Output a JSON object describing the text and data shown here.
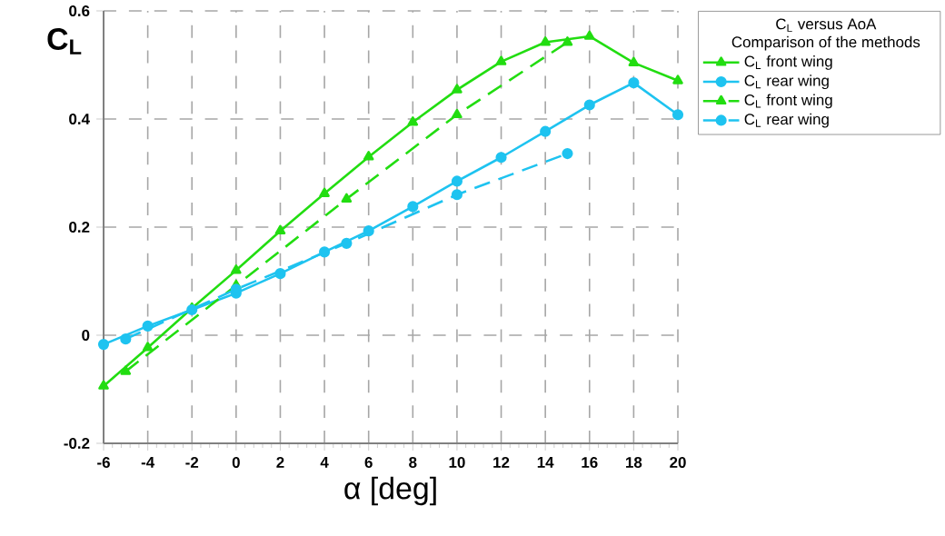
{
  "chart_data": {
    "type": "line",
    "xlabel": "α [deg]",
    "ylabel": "C$_{L}$",
    "legend_title": "C$_{L}$ versus AoA Comparison of the methods",
    "xlim": [
      -6,
      20
    ],
    "ylim": [
      -0.2,
      0.6
    ],
    "xticks": [
      -6,
      -4,
      -2,
      0,
      2,
      4,
      6,
      8,
      10,
      12,
      14,
      16,
      18,
      20
    ],
    "yticks": [
      -0.2,
      0,
      0.2,
      0.4,
      0.6
    ],
    "grid": true,
    "legend": "top right",
    "series": [
      {
        "name": "C$_{L}$ front wing",
        "color": "#22dd11",
        "marker": "triangle",
        "line_style": "solid",
        "x": [
          -6,
          -4,
          -2,
          0,
          2,
          4,
          6,
          8,
          10,
          12,
          14,
          16,
          18,
          20
        ],
        "values": [
          -0.094,
          -0.023,
          0.05,
          0.12,
          0.193,
          0.262,
          0.33,
          0.394,
          0.454,
          0.506,
          0.542,
          0.553,
          0.504,
          0.471
        ]
      },
      {
        "name": "C$_{L}$ rear wing",
        "color": "#1ec3f0",
        "marker": "circle",
        "line_style": "solid",
        "x": [
          -6,
          -4,
          -2,
          0,
          2,
          4,
          6,
          8,
          10,
          12,
          14,
          16,
          18,
          20
        ],
        "values": [
          -0.017,
          0.017,
          0.047,
          0.078,
          0.114,
          0.154,
          0.193,
          0.238,
          0.285,
          0.329,
          0.377,
          0.426,
          0.467,
          0.408
        ]
      },
      {
        "name": "C$_{L}$ front wing",
        "color": "#22dd11",
        "marker": "triangle",
        "line_style": "dashed",
        "x": [
          -5,
          0,
          5,
          10,
          15
        ],
        "values": [
          -0.067,
          0.092,
          0.252,
          0.408,
          0.542
        ]
      },
      {
        "name": "C$_{L}$ rear wing",
        "color": "#1ec3f0",
        "marker": "circle",
        "line_style": "dashed",
        "x": [
          -5,
          0,
          5,
          10,
          15
        ],
        "values": [
          -0.007,
          0.085,
          0.17,
          0.26,
          0.336
        ]
      }
    ]
  }
}
